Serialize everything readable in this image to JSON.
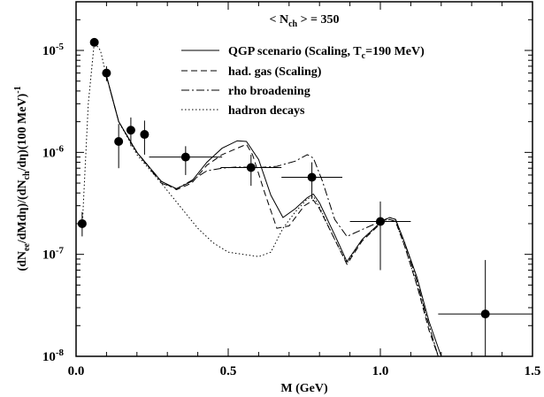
{
  "chart_data": {
    "type": "line",
    "annotation": {
      "prefix": "< N",
      "sub": "ch",
      "suffix": " > = 350"
    },
    "xlabel": "M (GeV)",
    "ylabel_parts": [
      {
        "t": "(dN"
      },
      {
        "t": "ee",
        "sub": true
      },
      {
        "t": "/dMdη)/(dN"
      },
      {
        "t": "ch",
        "sub": true
      },
      {
        "t": "/dη)(100 MeV)"
      },
      {
        "t": "-1",
        "sup": true
      }
    ],
    "xlim": [
      0.0,
      1.5
    ],
    "ylim": [
      1e-08,
      3e-05
    ],
    "yscale": "log",
    "xticks": [
      {
        "v": 0.0,
        "label": "0.0"
      },
      {
        "v": 0.5,
        "label": "0.5"
      },
      {
        "v": 1.0,
        "label": "1.0"
      },
      {
        "v": 1.5,
        "label": "1.5"
      }
    ],
    "yticks": [
      {
        "v": 1e-08,
        "base": "10",
        "exp": "-8"
      },
      {
        "v": 1e-07,
        "base": "10",
        "exp": "-7"
      },
      {
        "v": 1e-06,
        "base": "10",
        "exp": "-6"
      },
      {
        "v": 1e-05,
        "base": "10",
        "exp": "-5"
      }
    ],
    "series": [
      {
        "key": "qgp",
        "legend_parts": [
          {
            "t": "QGP scenario (Scaling, T"
          },
          {
            "t": "c",
            "sub": true
          },
          {
            "t": "=190 MeV)"
          }
        ],
        "dash": "solid",
        "points": [
          [
            0.1,
            5.6e-06
          ],
          [
            0.14,
            2e-06
          ],
          [
            0.2,
            1e-06
          ],
          [
            0.28,
            5.2e-07
          ],
          [
            0.33,
            4.4e-07
          ],
          [
            0.38,
            5.2e-07
          ],
          [
            0.43,
            8e-07
          ],
          [
            0.48,
            1.1e-06
          ],
          [
            0.53,
            1.3e-06
          ],
          [
            0.56,
            1.28e-06
          ],
          [
            0.6,
            8.5e-07
          ],
          [
            0.64,
            3.8e-07
          ],
          [
            0.68,
            2.3e-07
          ],
          [
            0.72,
            2.8e-07
          ],
          [
            0.76,
            3.6e-07
          ],
          [
            0.78,
            3.9e-07
          ],
          [
            0.8,
            3.2e-07
          ],
          [
            0.85,
            1.55e-07
          ],
          [
            0.89,
            8.5e-08
          ],
          [
            0.94,
            1.4e-07
          ],
          [
            1.0,
            2.05e-07
          ],
          [
            1.03,
            2.3e-07
          ],
          [
            1.05,
            2.2e-07
          ],
          [
            1.08,
            1.3e-07
          ],
          [
            1.12,
            6e-08
          ],
          [
            1.16,
            2.2e-08
          ],
          [
            1.2,
            1e-08
          ]
        ]
      },
      {
        "key": "had",
        "legend_parts": [
          {
            "t": "had. gas (Scaling)"
          }
        ],
        "dash": "dashed",
        "points": [
          [
            0.1,
            5.6e-06
          ],
          [
            0.14,
            2e-06
          ],
          [
            0.2,
            1e-06
          ],
          [
            0.28,
            5.2e-07
          ],
          [
            0.33,
            4.3e-07
          ],
          [
            0.38,
            5e-07
          ],
          [
            0.43,
            7.5e-07
          ],
          [
            0.48,
            9.5e-07
          ],
          [
            0.53,
            1.1e-06
          ],
          [
            0.56,
            1.2e-06
          ],
          [
            0.58,
            9.5e-07
          ],
          [
            0.62,
            4e-07
          ],
          [
            0.66,
            1.8e-07
          ],
          [
            0.7,
            1.9e-07
          ],
          [
            0.75,
            3e-07
          ],
          [
            0.78,
            3.4e-07
          ],
          [
            0.8,
            2.8e-07
          ],
          [
            0.85,
            1.4e-07
          ],
          [
            0.89,
            8e-08
          ],
          [
            0.94,
            1.35e-07
          ],
          [
            1.0,
            2e-07
          ],
          [
            1.03,
            2.2e-07
          ],
          [
            1.05,
            2.1e-07
          ],
          [
            1.08,
            1.2e-07
          ],
          [
            1.12,
            5e-08
          ],
          [
            1.16,
            1.8e-08
          ],
          [
            1.19,
            1e-08
          ]
        ]
      },
      {
        "key": "rho",
        "legend_parts": [
          {
            "t": "rho broadening"
          }
        ],
        "dash": "dashdot",
        "points": [
          [
            0.1,
            5.6e-06
          ],
          [
            0.14,
            2e-06
          ],
          [
            0.2,
            1e-06
          ],
          [
            0.28,
            5e-07
          ],
          [
            0.33,
            4.4e-07
          ],
          [
            0.38,
            5.3e-07
          ],
          [
            0.43,
            6.6e-07
          ],
          [
            0.48,
            7e-07
          ],
          [
            0.53,
            7.2e-07
          ],
          [
            0.6,
            7.1e-07
          ],
          [
            0.66,
            7.3e-07
          ],
          [
            0.72,
            8.2e-07
          ],
          [
            0.76,
            9.5e-07
          ],
          [
            0.78,
            8.8e-07
          ],
          [
            0.81,
            5.2e-07
          ],
          [
            0.85,
            2.2e-07
          ],
          [
            0.89,
            1.5e-07
          ],
          [
            0.94,
            1.75e-07
          ],
          [
            1.0,
            2.1e-07
          ],
          [
            1.03,
            2.3e-07
          ],
          [
            1.05,
            2.2e-07
          ],
          [
            1.08,
            1.3e-07
          ],
          [
            1.12,
            5.5e-08
          ],
          [
            1.16,
            2e-08
          ],
          [
            1.19,
            1e-08
          ]
        ]
      },
      {
        "key": "hadron",
        "legend_parts": [
          {
            "t": "hadron decays"
          }
        ],
        "dash": "dotted",
        "points": [
          [
            0.02,
            1.8e-07
          ],
          [
            0.04,
            3e-06
          ],
          [
            0.06,
            1.2e-05
          ],
          [
            0.08,
            1e-05
          ],
          [
            0.1,
            5.6e-06
          ],
          [
            0.14,
            2e-06
          ],
          [
            0.2,
            9.5e-07
          ],
          [
            0.28,
            5e-07
          ],
          [
            0.34,
            3e-07
          ],
          [
            0.4,
            1.8e-07
          ],
          [
            0.45,
            1.3e-07
          ],
          [
            0.5,
            1.05e-07
          ],
          [
            0.55,
            1e-07
          ],
          [
            0.6,
            9.5e-08
          ],
          [
            0.64,
            1.05e-07
          ],
          [
            0.68,
            1.8e-07
          ],
          [
            0.72,
            2.6e-07
          ],
          [
            0.76,
            3.5e-07
          ],
          [
            0.78,
            3.7e-07
          ],
          [
            0.8,
            2.9e-07
          ],
          [
            0.85,
            1.4e-07
          ],
          [
            0.89,
            8.2e-08
          ],
          [
            0.94,
            1.4e-07
          ],
          [
            1.0,
            2e-07
          ],
          [
            1.03,
            2.2e-07
          ],
          [
            1.05,
            2.1e-07
          ],
          [
            1.08,
            1.2e-07
          ],
          [
            1.12,
            5e-08
          ],
          [
            1.16,
            2e-08
          ],
          [
            1.19,
            1e-08
          ]
        ]
      }
    ],
    "data_points": [
      {
        "x": 0.02,
        "y": 2e-07,
        "xerr": 0.0,
        "ylo": 1.5e-07,
        "yhi": 2.6e-07
      },
      {
        "x": 0.06,
        "y": 1.2e-05,
        "xerr": 0.0,
        "ylo": 1.2e-05,
        "yhi": 1.2e-05
      },
      {
        "x": 0.1,
        "y": 6e-06,
        "xerr": 0.0,
        "ylo": 5e-06,
        "yhi": 7e-06
      },
      {
        "x": 0.14,
        "y": 1.28e-06,
        "xerr": 0.0,
        "ylo": 7e-07,
        "yhi": 1.9e-06
      },
      {
        "x": 0.18,
        "y": 1.65e-06,
        "xerr": 0.0,
        "ylo": 1.15e-06,
        "yhi": 2.2e-06
      },
      {
        "x": 0.225,
        "y": 1.5e-06,
        "xerr": 0.0,
        "ylo": 9.5e-07,
        "yhi": 2.05e-06
      },
      {
        "x": 0.36,
        "y": 9e-07,
        "xerr": 0.12,
        "ylo": 6e-07,
        "yhi": 1.15e-06
      },
      {
        "x": 0.575,
        "y": 7.1e-07,
        "xerr": 0.1,
        "ylo": 4.7e-07,
        "yhi": 9.5e-07
      },
      {
        "x": 0.775,
        "y": 5.7e-07,
        "xerr": 0.1,
        "ylo": 3.5e-07,
        "yhi": 8e-07
      },
      {
        "x": 1.0,
        "y": 2.1e-07,
        "xerr": 0.1,
        "ylo": 7e-08,
        "yhi": 3.3e-07
      },
      {
        "x": 1.345,
        "y": 2.6e-08,
        "xerr": 0.155,
        "ylo": 1e-08,
        "yhi": 8.8e-08
      }
    ]
  }
}
